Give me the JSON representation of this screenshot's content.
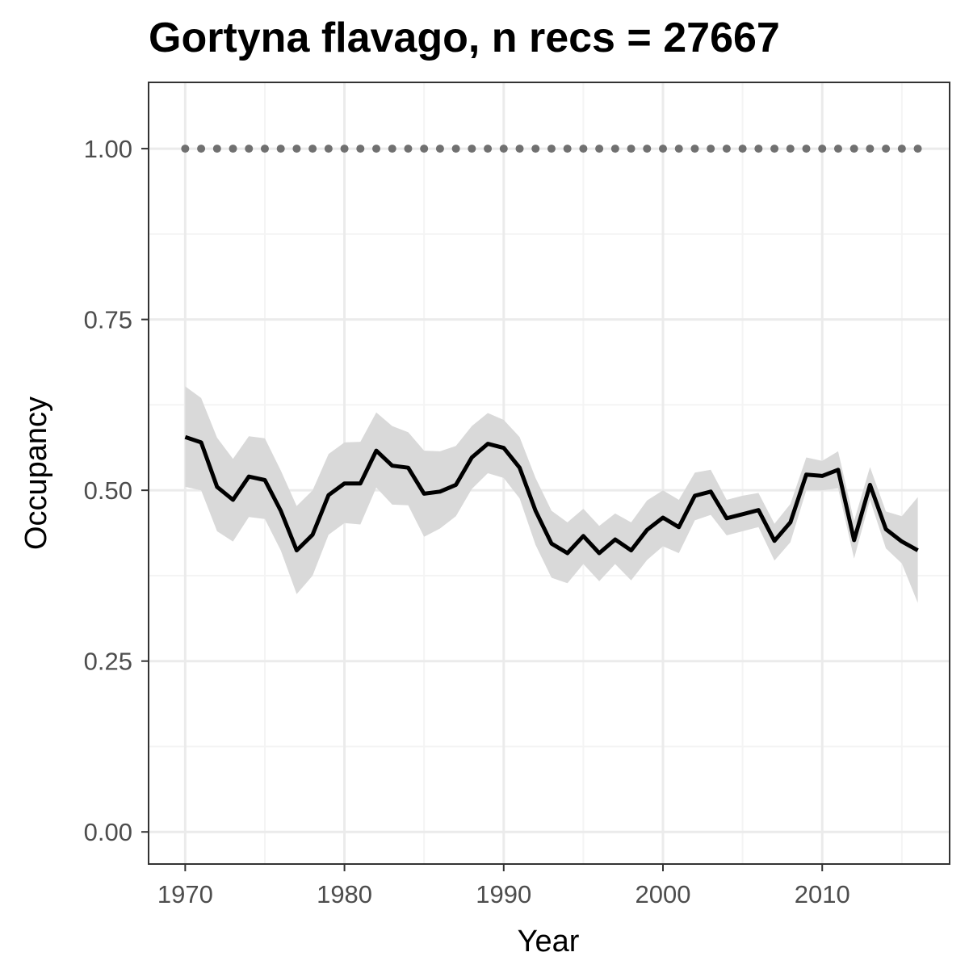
{
  "colors": {
    "panel_border": "#333333",
    "grid_major": "#ebebeb",
    "grid_minor": "#f4f4f4",
    "ribbon": "#d9d9d9",
    "line": "#000000",
    "dots": "#707070",
    "tick_text": "#4d4d4d"
  },
  "chart_data": {
    "type": "line",
    "title": "Gortyna flavago, n recs = 27667",
    "xlabel": "Year",
    "ylabel": "Occupancy",
    "xlim": [
      1967.7,
      2018.0
    ],
    "ylim": [
      -0.047,
      1.097
    ],
    "grid": true,
    "x_ticks": [
      1970,
      1980,
      1990,
      2000,
      2010
    ],
    "x_tick_labels": [
      "1970",
      "1980",
      "1990",
      "2000",
      "2010"
    ],
    "y_ticks": [
      0,
      0.25,
      0.5,
      0.75,
      1
    ],
    "y_tick_labels": [
      "0.00",
      "0.25",
      "0.50",
      "0.75",
      "1.00"
    ],
    "x": [
      1970,
      1971,
      1972,
      1973,
      1974,
      1975,
      1976,
      1977,
      1978,
      1979,
      1980,
      1981,
      1982,
      1983,
      1984,
      1985,
      1986,
      1987,
      1988,
      1989,
      1990,
      1991,
      1992,
      1993,
      1994,
      1995,
      1996,
      1997,
      1998,
      1999,
      2000,
      2001,
      2002,
      2003,
      2004,
      2005,
      2006,
      2007,
      2008,
      2009,
      2010,
      2011,
      2012,
      2013,
      2014,
      2015,
      2016
    ],
    "series": [
      {
        "values": [
          0.578,
          0.57,
          0.505,
          0.486,
          0.52,
          0.515,
          0.47,
          0.412,
          0.435,
          0.493,
          0.51,
          0.51,
          0.558,
          0.536,
          0.533,
          0.495,
          0.498,
          0.508,
          0.548,
          0.568,
          0.562,
          0.533,
          0.47,
          0.422,
          0.408,
          0.433,
          0.408,
          0.428,
          0.412,
          0.442,
          0.46,
          0.446,
          0.492,
          0.498,
          0.459,
          0.465,
          0.471,
          0.426,
          0.453,
          0.523,
          0.521,
          0.53,
          0.427,
          0.508,
          0.443,
          0.425,
          0.412
        ],
        "lower": [
          0.505,
          0.5,
          0.44,
          0.425,
          0.461,
          0.458,
          0.412,
          0.348,
          0.375,
          0.435,
          0.452,
          0.45,
          0.504,
          0.479,
          0.478,
          0.432,
          0.444,
          0.462,
          0.502,
          0.525,
          0.518,
          0.488,
          0.42,
          0.372,
          0.364,
          0.392,
          0.367,
          0.392,
          0.368,
          0.398,
          0.418,
          0.408,
          0.456,
          0.464,
          0.434,
          0.44,
          0.446,
          0.397,
          0.424,
          0.5,
          0.5,
          0.503,
          0.4,
          0.486,
          0.415,
          0.393,
          0.335
        ],
        "upper": [
          0.652,
          0.635,
          0.577,
          0.546,
          0.579,
          0.576,
          0.529,
          0.477,
          0.5,
          0.553,
          0.57,
          0.571,
          0.614,
          0.594,
          0.585,
          0.558,
          0.557,
          0.565,
          0.594,
          0.613,
          0.603,
          0.578,
          0.518,
          0.47,
          0.453,
          0.473,
          0.448,
          0.466,
          0.453,
          0.485,
          0.5,
          0.486,
          0.526,
          0.53,
          0.486,
          0.492,
          0.496,
          0.451,
          0.48,
          0.548,
          0.543,
          0.557,
          0.455,
          0.534,
          0.469,
          0.462,
          0.49
        ]
      },
      {
        "values": [
          1,
          1,
          1,
          1,
          1,
          1,
          1,
          1,
          1,
          1,
          1,
          1,
          1,
          1,
          1,
          1,
          1,
          1,
          1,
          1,
          1,
          1,
          1,
          1,
          1,
          1,
          1,
          1,
          1,
          1,
          1,
          1,
          1,
          1,
          1,
          1,
          1,
          1,
          1,
          1,
          1,
          1,
          1,
          1,
          1,
          1,
          1
        ]
      }
    ]
  }
}
